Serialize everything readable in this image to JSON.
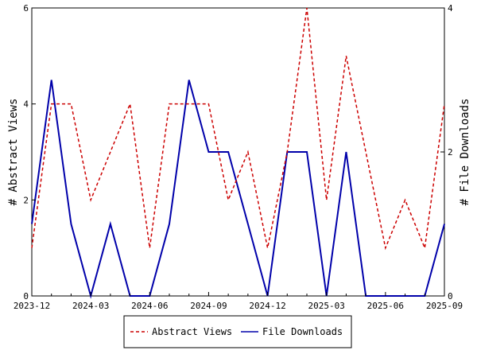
{
  "chart_data": {
    "type": "line",
    "title": "",
    "x": [
      "2023-12",
      "2024-01",
      "2024-02",
      "2024-03",
      "2024-04",
      "2024-05",
      "2024-06",
      "2024-07",
      "2024-08",
      "2024-09",
      "2024-10",
      "2024-11",
      "2024-12",
      "2025-01",
      "2025-02",
      "2025-03",
      "2025-04",
      "2025-05",
      "2025-06",
      "2025-07",
      "2025-08",
      "2025-09"
    ],
    "x_tick_labels": [
      "2023-12",
      "2024-03",
      "2024-06",
      "2024-09",
      "2024-12",
      "2025-03",
      "2025-06",
      "2025-09"
    ],
    "ylabel": "# Abstract Views",
    "y2label": "# File Downloads",
    "ylim": [
      0,
      6
    ],
    "y2lim": [
      0,
      4
    ],
    "y_ticks": [
      "0",
      "2",
      "4",
      "6"
    ],
    "y2_ticks": [
      "0",
      "2",
      "4"
    ],
    "grid": false,
    "legend_position": "bottom",
    "series": [
      {
        "name": "Abstract Views",
        "axis": "left",
        "color": "#cc0000",
        "style": "dashed",
        "values": [
          1,
          4,
          4,
          2,
          3,
          4,
          1,
          4,
          4,
          4,
          2,
          3,
          1,
          3,
          6,
          2,
          5,
          3,
          1,
          2,
          1,
          4
        ]
      },
      {
        "name": "File Downloads",
        "axis": "right",
        "color": "#0000aa",
        "style": "solid",
        "values": [
          1,
          3,
          1,
          0,
          1,
          0,
          0,
          1,
          3,
          2,
          2,
          1,
          0,
          2,
          2,
          0,
          2,
          0,
          0,
          0,
          0,
          1
        ]
      }
    ]
  }
}
